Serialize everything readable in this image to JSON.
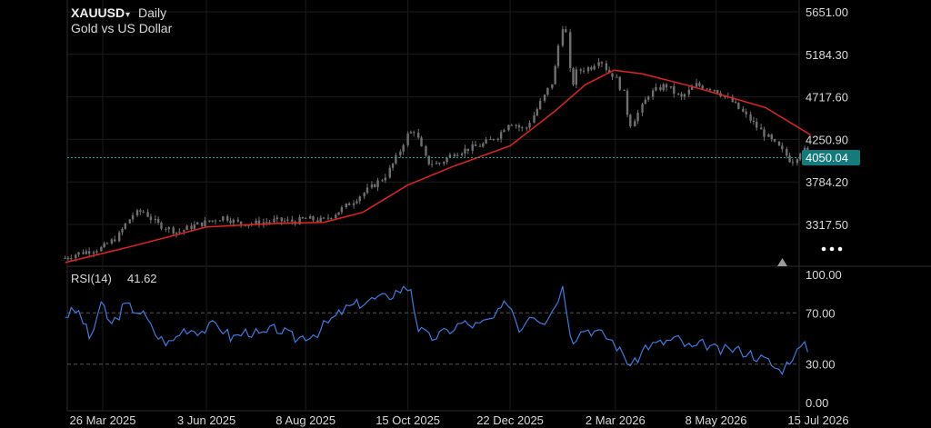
{
  "header": {
    "symbol": "XAUUSD",
    "dropdown_icon": "caret-down-icon",
    "timeframe": "Daily",
    "subtitle": "Gold vs US Dollar"
  },
  "current_price": "4050.04",
  "more_icon": "more-dots-icon",
  "scroll_icon": "triangle-up-icon",
  "colors": {
    "background": "#000000",
    "candle": "#6f6f6f",
    "moving_average": "#e02424",
    "current_price_line": "#1aa3a3",
    "price_tag": "#137b7b",
    "rsi_line": "#3d7be0"
  },
  "x_axis_labels": [
    "26 Mar 2025",
    "3 Jun 2025",
    "8 Aug 2025",
    "15 Oct 2025",
    "22 Dec 2025",
    "2 Mar 2026",
    "8 May 2026",
    "15 Jul 2026"
  ],
  "chart_data": [
    {
      "type": "candlestick",
      "ylabel_ticks": [
        "5651.00",
        "5184.30",
        "4717.60",
        "4250.90",
        "3784.20",
        "3317.50"
      ],
      "ylim": [
        2850,
        5750
      ],
      "x": [
        "26 Mar 2025",
        "3 Jun 2025",
        "8 Aug 2025",
        "15 Oct 2025",
        "22 Dec 2025",
        "2 Mar 2026",
        "8 May 2026",
        "15 Jul 2026"
      ],
      "close_series": [
        [
          "2025-03-01",
          2950
        ],
        [
          "2025-03-10",
          3000
        ],
        [
          "2025-03-26",
          3060
        ],
        [
          "2025-04-05",
          3180
        ],
        [
          "2025-04-15",
          3420
        ],
        [
          "2025-04-22",
          3470
        ],
        [
          "2025-05-01",
          3330
        ],
        [
          "2025-05-15",
          3230
        ],
        [
          "2025-05-25",
          3300
        ],
        [
          "2025-06-03",
          3340
        ],
        [
          "2025-06-15",
          3400
        ],
        [
          "2025-06-25",
          3330
        ],
        [
          "2025-07-05",
          3330
        ],
        [
          "2025-07-20",
          3360
        ],
        [
          "2025-08-01",
          3350
        ],
        [
          "2025-08-08",
          3380
        ],
        [
          "2025-08-20",
          3360
        ],
        [
          "2025-09-01",
          3480
        ],
        [
          "2025-09-15",
          3650
        ],
        [
          "2025-09-30",
          3840
        ],
        [
          "2025-10-08",
          4050
        ],
        [
          "2025-10-15",
          4300
        ],
        [
          "2025-10-20",
          4350
        ],
        [
          "2025-10-28",
          4000
        ],
        [
          "2025-11-05",
          3980
        ],
        [
          "2025-11-15",
          4100
        ],
        [
          "2025-11-25",
          4150
        ],
        [
          "2025-12-05",
          4200
        ],
        [
          "2025-12-15",
          4300
        ],
        [
          "2025-12-22",
          4450
        ],
        [
          "2026-01-01",
          4350
        ],
        [
          "2026-01-10",
          4600
        ],
        [
          "2026-01-20",
          4900
        ],
        [
          "2026-01-26",
          5500
        ],
        [
          "2026-01-29",
          5400
        ],
        [
          "2026-02-01",
          4800
        ],
        [
          "2026-02-05",
          5000
        ],
        [
          "2026-02-15",
          5050
        ],
        [
          "2026-02-20",
          5150
        ],
        [
          "2026-02-25",
          5000
        ],
        [
          "2026-03-02",
          4950
        ],
        [
          "2026-03-08",
          4750
        ],
        [
          "2026-03-12",
          4400
        ],
        [
          "2026-03-18",
          4550
        ],
        [
          "2026-03-25",
          4750
        ],
        [
          "2026-04-05",
          4850
        ],
        [
          "2026-04-15",
          4700
        ],
        [
          "2026-04-25",
          4850
        ],
        [
          "2026-05-08",
          4800
        ],
        [
          "2026-05-20",
          4650
        ],
        [
          "2026-06-01",
          4450
        ],
        [
          "2026-06-10",
          4300
        ],
        [
          "2026-06-20",
          4150
        ],
        [
          "2026-06-28",
          4000
        ],
        [
          "2026-07-05",
          4150
        ],
        [
          "2026-07-10",
          4050
        ]
      ],
      "moving_average": [
        [
          "2025-03-01",
          2900
        ],
        [
          "2025-04-15",
          3080
        ],
        [
          "2025-06-03",
          3290
        ],
        [
          "2025-07-20",
          3330
        ],
        [
          "2025-08-20",
          3340
        ],
        [
          "2025-09-15",
          3450
        ],
        [
          "2025-10-15",
          3750
        ],
        [
          "2025-11-15",
          3960
        ],
        [
          "2025-12-22",
          4180
        ],
        [
          "2026-01-20",
          4550
        ],
        [
          "2026-02-10",
          4850
        ],
        [
          "2026-03-01",
          5010
        ],
        [
          "2026-03-20",
          4970
        ],
        [
          "2026-04-20",
          4840
        ],
        [
          "2026-05-20",
          4700
        ],
        [
          "2026-06-10",
          4600
        ],
        [
          "2026-07-10",
          4300
        ]
      ]
    },
    {
      "type": "line",
      "name": "RSI(14)",
      "last_value": "41.62",
      "yticks": [
        "100.00",
        "70.00",
        "30.00",
        "0.00"
      ],
      "ylim": [
        0,
        100
      ],
      "reference_lines": [
        70,
        30
      ],
      "values": [
        [
          "2025-03-01",
          68
        ],
        [
          "2025-03-10",
          72
        ],
        [
          "2025-03-18",
          50
        ],
        [
          "2025-03-26",
          78
        ],
        [
          "2025-04-01",
          60
        ],
        [
          "2025-04-10",
          76
        ],
        [
          "2025-04-22",
          70
        ],
        [
          "2025-05-01",
          52
        ],
        [
          "2025-05-10",
          46
        ],
        [
          "2025-05-20",
          58
        ],
        [
          "2025-06-01",
          56
        ],
        [
          "2025-06-10",
          62
        ],
        [
          "2025-06-20",
          50
        ],
        [
          "2025-07-01",
          56
        ],
        [
          "2025-07-10",
          52
        ],
        [
          "2025-07-20",
          58
        ],
        [
          "2025-08-01",
          50
        ],
        [
          "2025-08-15",
          54
        ],
        [
          "2025-08-25",
          64
        ],
        [
          "2025-09-05",
          74
        ],
        [
          "2025-09-20",
          80
        ],
        [
          "2025-10-01",
          82
        ],
        [
          "2025-10-10",
          88
        ],
        [
          "2025-10-18",
          90
        ],
        [
          "2025-10-22",
          58
        ],
        [
          "2025-10-30",
          50
        ],
        [
          "2025-11-10",
          55
        ],
        [
          "2025-11-20",
          62
        ],
        [
          "2025-12-01",
          60
        ],
        [
          "2025-12-12",
          66
        ],
        [
          "2025-12-22",
          80
        ],
        [
          "2025-12-28",
          56
        ],
        [
          "2026-01-05",
          70
        ],
        [
          "2026-01-15",
          64
        ],
        [
          "2026-01-22",
          78
        ],
        [
          "2026-01-27",
          92
        ],
        [
          "2026-02-01",
          48
        ],
        [
          "2026-02-10",
          58
        ],
        [
          "2026-02-20",
          54
        ],
        [
          "2026-03-01",
          48
        ],
        [
          "2026-03-08",
          36
        ],
        [
          "2026-03-14",
          28
        ],
        [
          "2026-03-22",
          44
        ],
        [
          "2026-04-01",
          46
        ],
        [
          "2026-04-12",
          50
        ],
        [
          "2026-04-22",
          42
        ],
        [
          "2026-05-01",
          46
        ],
        [
          "2026-05-10",
          40
        ],
        [
          "2026-05-20",
          42
        ],
        [
          "2026-06-01",
          38
        ],
        [
          "2026-06-12",
          32
        ],
        [
          "2026-06-20",
          24
        ],
        [
          "2026-06-28",
          36
        ],
        [
          "2026-07-05",
          44
        ],
        [
          "2026-07-10",
          42
        ]
      ]
    }
  ]
}
